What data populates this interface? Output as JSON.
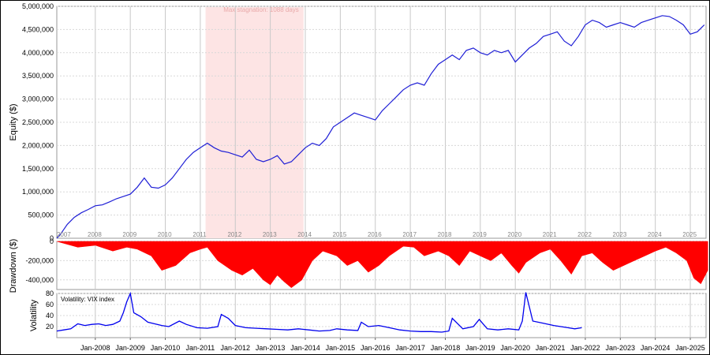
{
  "colors": {
    "equity_line": "#1f1fd6",
    "drawdown_fill": "#ff0000",
    "vix_line": "#0000ee",
    "stagnation_band": "#fde4e4",
    "grid": "#d8d8d8",
    "year_grid": "#c8c8c8"
  },
  "chart_data": [
    {
      "type": "line",
      "panel": "equity",
      "ylabel": "Equity ($)",
      "ylim": [
        0,
        5000000
      ],
      "yticks": [
        "0",
        "500,000",
        "1,000,000",
        "1,500,000",
        "2,000,000",
        "2,500,000",
        "3,000,000",
        "3,500,000",
        "4,000,000",
        "4,500,000",
        "5,000,000"
      ],
      "year_labels": [
        "2007",
        "2008",
        "2009",
        "2010",
        "2011",
        "2012",
        "2013",
        "2014",
        "2015",
        "2016",
        "2017",
        "2018",
        "2019",
        "2020",
        "2021",
        "2022",
        "2023",
        "2024",
        "2025"
      ],
      "annotation": "Max stagnation: 1088 days",
      "stagnation": {
        "start": 2011.0,
        "end": 2014.0
      },
      "grid": true,
      "series": [
        {
          "x": [
            2006.9,
            2007.0,
            2007.2,
            2007.4,
            2007.6,
            2007.8,
            2008.0,
            2008.2,
            2008.4,
            2008.6,
            2008.8,
            2009.0,
            2009.2,
            2009.4,
            2009.6,
            2009.8,
            2010.0,
            2010.2,
            2010.4,
            2010.6,
            2010.8,
            2011.0,
            2011.2,
            2011.4,
            2011.6,
            2011.8,
            2012.0,
            2012.2,
            2012.4,
            2012.6,
            2012.8,
            2013.0,
            2013.2,
            2013.4,
            2013.6,
            2013.8,
            2014.0,
            2014.2,
            2014.4,
            2014.6,
            2014.8,
            2015.0,
            2015.2,
            2015.4,
            2015.6,
            2015.8,
            2016.0,
            2016.2,
            2016.4,
            2016.6,
            2016.8,
            2017.0,
            2017.2,
            2017.4,
            2017.6,
            2017.8,
            2018.0,
            2018.2,
            2018.4,
            2018.6,
            2018.8,
            2019.0,
            2019.2,
            2019.4,
            2019.6,
            2019.8,
            2020.0,
            2020.2,
            2020.4,
            2020.6,
            2020.8,
            2021.0,
            2021.2,
            2021.4,
            2021.6,
            2021.8,
            2022.0,
            2022.2,
            2022.4,
            2022.6,
            2022.8,
            2023.0,
            2023.2,
            2023.4,
            2023.6,
            2023.8,
            2024.0,
            2024.2,
            2024.4,
            2024.6,
            2024.8,
            2025.0,
            2025.2,
            2025.4
          ],
          "y": [
            0,
            80000,
            300000,
            450000,
            550000,
            620000,
            700000,
            720000,
            780000,
            850000,
            900000,
            950000,
            1100000,
            1300000,
            1100000,
            1080000,
            1150000,
            1300000,
            1500000,
            1700000,
            1850000,
            1950000,
            2050000,
            1950000,
            1880000,
            1850000,
            1800000,
            1750000,
            1900000,
            1700000,
            1650000,
            1700000,
            1780000,
            1600000,
            1650000,
            1800000,
            1950000,
            2050000,
            2000000,
            2150000,
            2400000,
            2500000,
            2600000,
            2700000,
            2650000,
            2600000,
            2550000,
            2750000,
            2900000,
            3050000,
            3200000,
            3300000,
            3350000,
            3300000,
            3550000,
            3750000,
            3850000,
            3950000,
            3850000,
            4050000,
            4100000,
            4000000,
            3950000,
            4050000,
            4000000,
            4050000,
            3800000,
            3950000,
            4100000,
            4200000,
            4350000,
            4400000,
            4450000,
            4250000,
            4150000,
            4350000,
            4600000,
            4700000,
            4650000,
            4550000,
            4600000,
            4650000,
            4600000,
            4550000,
            4650000,
            4700000,
            4750000,
            4800000,
            4780000,
            4700000,
            4600000,
            4400000,
            4450000,
            4600000
          ]
        }
      ]
    },
    {
      "type": "area",
      "panel": "drawdown",
      "ylabel": "Drawdown ($)",
      "ylim": [
        -500000,
        0
      ],
      "yticks": [
        "-400,000",
        "-200,000",
        "0"
      ],
      "grid": true,
      "series": [
        {
          "x": [
            2006.9,
            2007.5,
            2008.0,
            2008.5,
            2008.9,
            2009.2,
            2009.6,
            2009.9,
            2010.3,
            2010.7,
            2011.0,
            2011.2,
            2011.5,
            2011.9,
            2012.2,
            2012.5,
            2012.8,
            2013.0,
            2013.2,
            2013.4,
            2013.6,
            2013.9,
            2014.2,
            2014.5,
            2014.9,
            2015.2,
            2015.5,
            2015.8,
            2016.1,
            2016.4,
            2016.8,
            2017.1,
            2017.4,
            2017.8,
            2018.1,
            2018.4,
            2018.7,
            2019.0,
            2019.3,
            2019.6,
            2019.9,
            2020.1,
            2020.3,
            2020.7,
            2021.0,
            2021.3,
            2021.6,
            2021.9,
            2022.2,
            2022.5,
            2022.8,
            2023.1,
            2023.4,
            2023.7,
            2024.0,
            2024.3,
            2024.6,
            2024.9,
            2025.1,
            2025.3,
            2025.5
          ],
          "y": [
            0,
            -60000,
            -40000,
            -100000,
            -60000,
            -80000,
            -150000,
            -300000,
            -250000,
            -120000,
            -80000,
            -60000,
            -200000,
            -300000,
            -350000,
            -280000,
            -400000,
            -450000,
            -350000,
            -420000,
            -480000,
            -400000,
            -200000,
            -100000,
            -150000,
            -250000,
            -200000,
            -320000,
            -250000,
            -150000,
            -50000,
            -60000,
            -150000,
            -100000,
            -150000,
            -250000,
            -100000,
            -150000,
            -200000,
            -120000,
            -250000,
            -330000,
            -220000,
            -120000,
            -80000,
            -200000,
            -340000,
            -150000,
            -120000,
            -220000,
            -300000,
            -250000,
            -200000,
            -150000,
            -100000,
            -60000,
            -120000,
            -200000,
            -380000,
            -440000,
            -300000
          ]
        }
      ]
    },
    {
      "type": "line",
      "panel": "volatility",
      "ylabel": "Volatility",
      "legend": "Volatility: VIX index",
      "ylim": [
        0,
        80
      ],
      "yticks": [
        "80",
        "60",
        "40",
        "20"
      ],
      "xticks": [
        "Jan-2008",
        "Jan-2009",
        "Jan-2010",
        "Jan-2011",
        "Jan-2012",
        "Jan-2013",
        "Jan-2014",
        "Jan-2015",
        "Jan-2016",
        "Jan-2017",
        "Jan-2018",
        "Jan-2019",
        "Jan-2020",
        "Jan-2021",
        "Jan-2022",
        "Jan-2023",
        "Jan-2024",
        "Jan-2025"
      ],
      "grid": true,
      "series": [
        {
          "name": "Volatility: VIX index",
          "x": [
            2006.9,
            2007.1,
            2007.3,
            2007.5,
            2007.7,
            2007.9,
            2008.1,
            2008.3,
            2008.5,
            2008.7,
            2008.8,
            2008.9,
            2009.0,
            2009.1,
            2009.3,
            2009.5,
            2009.7,
            2009.9,
            2010.1,
            2010.4,
            2010.6,
            2010.9,
            2011.2,
            2011.5,
            2011.6,
            2011.8,
            2012.0,
            2012.3,
            2012.6,
            2012.9,
            2013.2,
            2013.5,
            2013.8,
            2014.1,
            2014.4,
            2014.7,
            2014.9,
            2015.2,
            2015.5,
            2015.6,
            2015.8,
            2016.1,
            2016.4,
            2016.7,
            2017.0,
            2017.3,
            2017.6,
            2017.9,
            2018.1,
            2018.2,
            2018.5,
            2018.8,
            2018.97,
            2019.2,
            2019.5,
            2019.8,
            2020.1,
            2020.2,
            2020.3,
            2020.5,
            2020.8,
            2021.1,
            2021.3,
            2021.5,
            2021.7,
            2021.9
          ],
          "y": [
            12,
            14,
            16,
            25,
            22,
            24,
            25,
            22,
            24,
            30,
            45,
            65,
            80,
            45,
            38,
            28,
            25,
            22,
            20,
            30,
            24,
            18,
            17,
            20,
            42,
            35,
            22,
            18,
            17,
            16,
            15,
            14,
            16,
            14,
            12,
            13,
            16,
            14,
            13,
            28,
            20,
            22,
            18,
            14,
            12,
            11,
            11,
            10,
            12,
            35,
            16,
            20,
            33,
            16,
            14,
            16,
            14,
            30,
            82,
            30,
            26,
            22,
            20,
            18,
            16,
            18
          ]
        }
      ]
    }
  ]
}
